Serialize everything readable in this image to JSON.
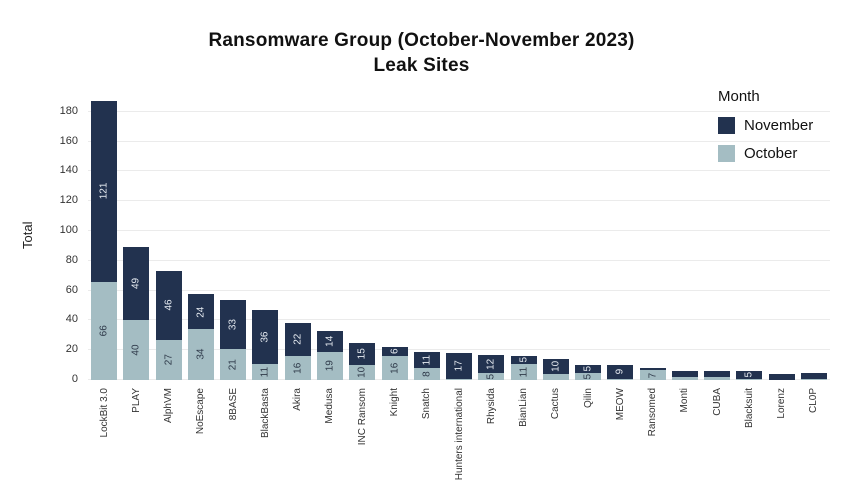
{
  "title": {
    "line1": "Ransomware Group (October-November 2023)",
    "line2": "Leak Sites"
  },
  "y_axis": {
    "label": "Total",
    "ticks": [
      0,
      20,
      40,
      60,
      80,
      100,
      120,
      140,
      160,
      180
    ]
  },
  "legend": {
    "title": "Month",
    "items": [
      {
        "label": "November",
        "color": "#22324f"
      },
      {
        "label": "October",
        "color": "#a4bdc3"
      }
    ]
  },
  "colors": {
    "november": "#22324f",
    "october": "#a4bdc3",
    "gridline": "#ebebeb",
    "background": "#ffffff"
  },
  "chart_data": {
    "type": "bar",
    "stacked": true,
    "title": "Ransomware Group (October-November 2023) Leak Sites",
    "xlabel": "",
    "ylabel": "Total",
    "ylim": [
      0,
      190
    ],
    "grid": true,
    "legend_position": "top-right",
    "categories": [
      "LockBit 3.0",
      "PLAY",
      "AlphVM",
      "NoEscape",
      "8BASE",
      "BlackBasta",
      "Akira",
      "Medusa",
      "INC Ransom",
      "Knight",
      "Snatch",
      "Hunters international",
      "Rhysida",
      "BianLian",
      "Cactus",
      "Qilin",
      "MEOW",
      "Ransomed",
      "Monti",
      "CUBA",
      "Blacksuit",
      "Lorenz",
      "CL0P"
    ],
    "series": [
      {
        "name": "October",
        "color": "#a4bdc3",
        "values": [
          66,
          40,
          27,
          34,
          21,
          11,
          16,
          19,
          10,
          16,
          8,
          1,
          5,
          11,
          4,
          5,
          1,
          7,
          2,
          2,
          1,
          0,
          1
        ],
        "labels": [
          "66",
          "40",
          "27",
          "34",
          "21",
          "11",
          "16",
          "19",
          "10",
          "16",
          "8",
          "",
          "5",
          "11",
          "",
          "5",
          "",
          "7",
          "",
          "",
          "",
          "",
          ""
        ]
      },
      {
        "name": "November",
        "color": "#22324f",
        "values": [
          121,
          49,
          46,
          24,
          33,
          36,
          22,
          14,
          15,
          6,
          11,
          17,
          12,
          5,
          10,
          5,
          9,
          1,
          4,
          4,
          5,
          4,
          4
        ],
        "labels": [
          "121",
          "49",
          "46",
          "24",
          "33",
          "36",
          "22",
          "14",
          "15",
          "6",
          "11",
          "17",
          "12",
          "5",
          "10",
          "5",
          "9",
          "",
          "",
          "",
          "5",
          "",
          ""
        ]
      }
    ]
  }
}
